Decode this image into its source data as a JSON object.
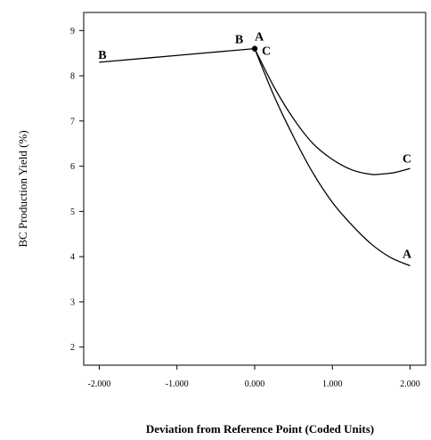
{
  "chart_data": {
    "type": "line",
    "title": "",
    "xlabel": "Deviation from Reference Point (Coded Units)",
    "ylabel": "BC Production Yield (%)",
    "xlim": [
      -2.2,
      2.2
    ],
    "ylim": [
      1.6,
      9.4
    ],
    "x_ticks": [
      -2,
      -1,
      0,
      1,
      2
    ],
    "x_tick_labels": [
      "-2.000",
      "-1.000",
      "0.000",
      "1.000",
      "2.000"
    ],
    "y_ticks": [
      2,
      3,
      4,
      5,
      6,
      7,
      8,
      9
    ],
    "y_tick_labels": [
      "2",
      "3",
      "4",
      "5",
      "6",
      "7",
      "8",
      "9"
    ],
    "grid": false,
    "legend": "none",
    "reference_point": {
      "x": 0,
      "y": 8.6
    },
    "series": [
      {
        "name": "B",
        "x": [
          -2,
          -1,
          0
        ],
        "y": [
          8.3,
          8.45,
          8.6
        ],
        "label_at": [
          [
            "B",
            -1.96,
            8.38
          ],
          [
            "B",
            -0.2,
            8.72
          ]
        ]
      },
      {
        "name": "A",
        "x": [
          0,
          0.25,
          0.5,
          0.75,
          1.0,
          1.25,
          1.5,
          1.75,
          2.0
        ],
        "y": [
          8.6,
          7.55,
          6.65,
          5.85,
          5.2,
          4.7,
          4.28,
          3.98,
          3.8
        ],
        "label_at": [
          [
            "A",
            0.06,
            8.78
          ],
          [
            "A",
            1.96,
            3.97
          ]
        ]
      },
      {
        "name": "C",
        "x": [
          0,
          0.25,
          0.5,
          0.75,
          1.0,
          1.25,
          1.5,
          1.65,
          1.8,
          2.0
        ],
        "y": [
          8.6,
          7.75,
          7.05,
          6.5,
          6.15,
          5.92,
          5.82,
          5.83,
          5.86,
          5.95
        ],
        "label_at": [
          [
            "C",
            0.15,
            8.46
          ],
          [
            "C",
            1.96,
            6.08
          ]
        ]
      }
    ]
  }
}
